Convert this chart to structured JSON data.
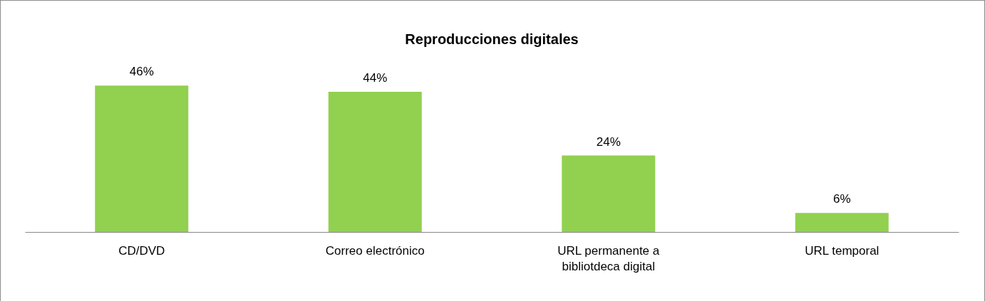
{
  "chart_data": {
    "type": "bar",
    "title": "Reproducciones digitales",
    "categories": [
      "CD/DVD",
      "Correo electrónico",
      "URL permanente a bibliotdeca digital",
      "URL temporal"
    ],
    "values": [
      46,
      44,
      24,
      6
    ],
    "value_labels": [
      "46%",
      "44%",
      "24%",
      "6%"
    ],
    "color": "#92d050"
  }
}
